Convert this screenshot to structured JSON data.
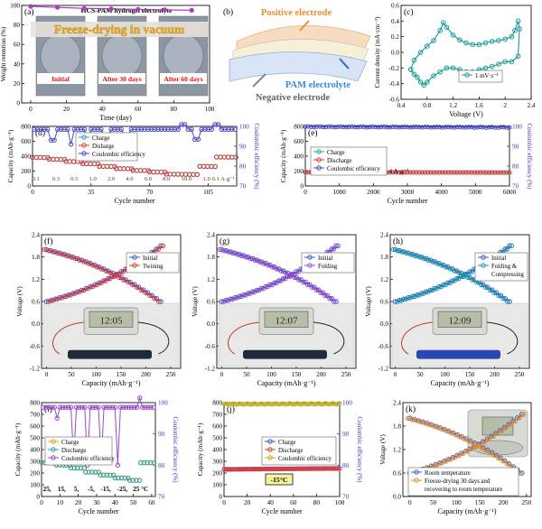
{
  "chart_data": [
    {
      "panel": "(a)",
      "type": "line",
      "title": "HCS-PAM hydrogel electrolyte",
      "xlabel": "Time (day)",
      "ylabel": "Weight retention (%)",
      "xlim": [
        -5,
        100
      ],
      "ylim": [
        0,
        100
      ],
      "xticks": [
        0,
        20,
        40,
        60,
        80,
        100
      ],
      "yticks": [
        0,
        20,
        40,
        60,
        80,
        100
      ],
      "banner": "Freeze-drying in vacuum",
      "photo_labels": [
        "Initial",
        "After 30 days",
        "After 60 days"
      ],
      "series": [
        {
          "color": "#b03cc0",
          "x": [
            0,
            15,
            30,
            45,
            60,
            75,
            90
          ],
          "y": [
            99,
            98,
            97,
            96.5,
            96,
            95.5,
            95
          ]
        }
      ]
    },
    {
      "panel": "(b)",
      "type": "diagram",
      "labels": {
        "top": "Positive electrode",
        "middle": "PAM electrolyte",
        "bottom": "Negative electrode"
      }
    },
    {
      "panel": "(c)",
      "type": "line",
      "xlabel": "Voltage (V)",
      "ylabel": "Current density (mA·cm⁻²)",
      "xlim": [
        0.4,
        2.4
      ],
      "ylim": [
        -0.6,
        0.6
      ],
      "xticks": [
        0.4,
        0.8,
        1.2,
        1.6,
        2.0,
        2.4
      ],
      "yticks": [
        -0.6,
        -0.4,
        -0.2,
        0.0,
        0.2,
        0.4,
        0.6
      ],
      "series": [
        {
          "name": "1 mV·s⁻¹",
          "color": "#1a9a96",
          "x": [
            0.55,
            0.6,
            0.7,
            0.8,
            0.9,
            1.0,
            1.05,
            1.1,
            1.2,
            1.3,
            1.4,
            1.5,
            1.6,
            1.7,
            1.8,
            1.9,
            2.0,
            2.1,
            2.15,
            2.2,
            2.22,
            2.2,
            2.1,
            2.0,
            1.9,
            1.8,
            1.7,
            1.6,
            1.5,
            1.4,
            1.3,
            1.2,
            1.1,
            1.0,
            0.9,
            0.8,
            0.75,
            0.7,
            0.65,
            0.6,
            0.55
          ],
          "y": [
            -0.22,
            -0.1,
            0.0,
            0.08,
            0.15,
            0.28,
            0.38,
            0.32,
            0.22,
            0.16,
            0.12,
            0.1,
            0.1,
            0.12,
            0.14,
            0.15,
            0.17,
            0.2,
            0.28,
            0.4,
            0.3,
            -0.05,
            -0.12,
            -0.12,
            -0.15,
            -0.18,
            -0.2,
            -0.22,
            -0.25,
            -0.25,
            -0.22,
            -0.2,
            -0.2,
            -0.25,
            -0.3,
            -0.38,
            -0.42,
            -0.38,
            -0.32,
            -0.28,
            -0.22
          ]
        }
      ]
    },
    {
      "panel": "(d)",
      "type": "line",
      "xlabel": "Cycle number",
      "ylabel": "Capacity (mAh·g⁻¹)",
      "y2label": "Coulombic efficiency (%)",
      "xlim": [
        0,
        122
      ],
      "ylim": [
        0,
        800
      ],
      "y2lim": [
        70,
        100
      ],
      "xticks": [
        0,
        35,
        70,
        105
      ],
      "yticks": [
        0,
        200,
        400,
        600,
        800
      ],
      "y2ticks": [
        70,
        80,
        90,
        100
      ],
      "rate_labels": [
        "0.1",
        "0.3",
        "0.5",
        "1.0",
        "2.0",
        "4.0",
        "6.0",
        "8.0",
        "10.0",
        "1.0",
        "0.1 A·g⁻¹"
      ],
      "legend": [
        "Charge",
        "Disharge",
        "Coulombic efficiency"
      ],
      "series": [
        {
          "name": "Charge",
          "color": "#2aa8a0",
          "axis": "y",
          "segments": [
            [
              0,
              10,
              385
            ],
            [
              10,
              20,
              360
            ],
            [
              20,
              30,
              330
            ],
            [
              30,
              40,
              300
            ],
            [
              40,
              50,
              265
            ],
            [
              50,
              60,
              235
            ],
            [
              60,
              70,
              210
            ],
            [
              70,
              80,
              190
            ],
            [
              80,
              100,
              160
            ],
            [
              100,
              110,
              265
            ],
            [
              110,
              122,
              390
            ]
          ]
        },
        {
          "name": "Disharge",
          "color": "#d83a3a",
          "axis": "y",
          "segments": [
            [
              0,
              10,
              383
            ],
            [
              10,
              20,
              358
            ],
            [
              20,
              30,
              328
            ],
            [
              30,
              40,
              298
            ],
            [
              40,
              50,
              263
            ],
            [
              50,
              60,
              233
            ],
            [
              60,
              70,
              208
            ],
            [
              70,
              80,
              188
            ],
            [
              80,
              100,
              158
            ],
            [
              100,
              110,
              263
            ],
            [
              110,
              122,
              388
            ]
          ]
        },
        {
          "name": "Coulombic efficiency",
          "color": "#4a4ac8",
          "axis": "y2",
          "base": 98.5,
          "dips": [
            [
              12,
              93
            ],
            [
              23,
              91
            ],
            [
              33,
              90
            ],
            [
              44,
              94.5
            ],
            [
              56,
              95.5
            ],
            [
              98,
              93.5
            ]
          ],
          "spikes": [
            [
              90,
              101
            ],
            [
              110,
              101
            ]
          ]
        }
      ]
    },
    {
      "panel": "(e)",
      "type": "line",
      "xlabel": "Cycle number",
      "ylabel": "Capacity (mAh·g⁻¹)",
      "y2label": "Coulombic efficiency (%)",
      "xlim": [
        0,
        6000
      ],
      "ylim": [
        0,
        800
      ],
      "y2lim": [
        70,
        100
      ],
      "xticks": [
        0,
        1000,
        2000,
        3000,
        4000,
        5000,
        6000
      ],
      "yticks": [
        0,
        200,
        400,
        600,
        800
      ],
      "y2ticks": [
        70,
        80,
        90,
        100
      ],
      "legend": [
        "Charge",
        "Discharge",
        "Coulombic efficiency"
      ],
      "annotation": "4 A·g⁻¹",
      "series": [
        {
          "name": "Charge",
          "color": "#2aa8a0",
          "axis": "y",
          "x": [
            0,
            6000
          ],
          "y": [
            185,
            180
          ]
        },
        {
          "name": "Discharge",
          "color": "#d83a3a",
          "axis": "y",
          "x": [
            0,
            6000
          ],
          "y": [
            184,
            179
          ]
        },
        {
          "name": "Coulombic efficiency",
          "color": "#4a4ac8",
          "axis": "y2",
          "x": [
            0,
            6000
          ],
          "y": [
            99.8,
            99.5
          ]
        }
      ]
    },
    {
      "panel": "(f)",
      "type": "line",
      "xlabel": "Capacity (mAh·g⁻¹)",
      "ylabel": "Voltage (V)",
      "xlim": [
        -10,
        270
      ],
      "ylim": [
        -1.2,
        2.4
      ],
      "xticks": [
        0,
        50,
        100,
        150,
        200,
        250
      ],
      "yticks": [
        -1.2,
        -0.6,
        0.0,
        0.6,
        1.2,
        1.8,
        2.4
      ],
      "legend": [
        "Initial",
        "Twining"
      ],
      "colors": [
        "#3a5ad0",
        "#d83a3a"
      ],
      "charge_x": [
        0,
        230
      ],
      "charge_y": [
        0.6,
        2.1
      ],
      "discharge_y": [
        2.0,
        0.6
      ],
      "display_text": "12:05"
    },
    {
      "panel": "(g)",
      "type": "line",
      "xlabel": "Capacity (mAh·g⁻¹)",
      "ylabel": "Voltage (V)",
      "xlim": [
        -10,
        270
      ],
      "ylim": [
        -1.2,
        2.4
      ],
      "xticks": [
        0,
        50,
        100,
        150,
        200,
        250
      ],
      "yticks": [
        -1.2,
        -0.6,
        0.0,
        0.6,
        1.2,
        1.8,
        2.4
      ],
      "legend": [
        "Initial",
        "Folding"
      ],
      "colors": [
        "#3a5ad0",
        "#9a4ac8"
      ],
      "charge_x": [
        0,
        230
      ],
      "charge_y": [
        0.6,
        2.1
      ],
      "discharge_y": [
        2.0,
        0.6
      ],
      "display_text": "12:07"
    },
    {
      "panel": "(h)",
      "type": "line",
      "xlabel": "Capacity (mAh·g⁻¹)",
      "ylabel": "Voltage (V)",
      "xlim": [
        -10,
        270
      ],
      "ylim": [
        -1.2,
        2.4
      ],
      "xticks": [
        0,
        50,
        100,
        150,
        200,
        250
      ],
      "yticks": [
        -1.2,
        -0.6,
        0.0,
        0.6,
        1.2,
        1.8,
        2.4
      ],
      "legend": [
        "Initial",
        "Folding &",
        "Compressing"
      ],
      "colors": [
        "#3a5ad0",
        "#1a9aa6"
      ],
      "charge_x": [
        0,
        230
      ],
      "charge_y": [
        0.6,
        2.1
      ],
      "discharge_y": [
        2.0,
        0.6
      ],
      "display_text": "12:09"
    },
    {
      "panel": "(i)",
      "type": "line",
      "xlabel": "Cycle number",
      "ylabel": "Capacity (mAh·g⁻¹)",
      "y2label": "Coulombic efficiency (%)",
      "xlim": [
        0,
        62
      ],
      "ylim": [
        0,
        800
      ],
      "y2lim": [
        70,
        100
      ],
      "xticks": [
        0,
        10,
        20,
        30,
        40,
        50,
        60
      ],
      "yticks": [
        0,
        100,
        200,
        300,
        400,
        500,
        600,
        700,
        800
      ],
      "y2ticks": [
        70,
        80,
        90,
        100
      ],
      "temp_labels": [
        "25,",
        "15,",
        "5,",
        "-5,",
        "-15,",
        "-25,",
        "25 °C"
      ],
      "legend": [
        "Charge",
        "Discharge",
        "Coulombic efficiency"
      ],
      "series": [
        {
          "name": "Charge",
          "color": "#e8a020",
          "axis": "y",
          "segments": [
            [
              0,
              8,
              290
            ],
            [
              8,
              16,
              270
            ],
            [
              16,
              24,
              245
            ],
            [
              24,
              32,
              210
            ],
            [
              32,
              40,
              185
            ],
            [
              40,
              48,
              160
            ],
            [
              48,
              54,
              140
            ],
            [
              54,
              62,
              290
            ]
          ]
        },
        {
          "name": "Discharge",
          "color": "#2aa8a0",
          "axis": "y",
          "segments": [
            [
              0,
              8,
              288
            ],
            [
              8,
              16,
              268
            ],
            [
              16,
              24,
              243
            ],
            [
              24,
              32,
              208
            ],
            [
              32,
              40,
              183
            ],
            [
              40,
              48,
              158
            ],
            [
              48,
              54,
              138
            ],
            [
              54,
              62,
              288
            ]
          ]
        },
        {
          "name": "Coulombic efficiency",
          "color": "#9a4ac8",
          "axis": "y2",
          "base": 98.5,
          "dips": [
            [
              9,
              95
            ],
            [
              17,
              82
            ],
            [
              25,
              80
            ],
            [
              33,
              81
            ],
            [
              41,
              80
            ]
          ],
          "spikes": [
            [
              54,
              101.5
            ]
          ]
        }
      ]
    },
    {
      "panel": "(j)",
      "type": "line",
      "xlabel": "Cycle number",
      "ylabel": "Capacity (mAh·g⁻¹)",
      "y2label": "Coulombic efficiency (%)",
      "xlim": [
        0,
        100
      ],
      "ylim": [
        0,
        800
      ],
      "y2lim": [
        70,
        100
      ],
      "xticks": [
        0,
        20,
        40,
        60,
        80,
        100
      ],
      "yticks": [
        0,
        100,
        200,
        300,
        400,
        500,
        600,
        700,
        800
      ],
      "y2ticks": [
        70,
        80,
        90,
        100
      ],
      "legend": [
        "Charge",
        "Discharge",
        "Coulombic efficiency"
      ],
      "annotation": "-15°C",
      "series": [
        {
          "name": "Charge",
          "color": "#3a5ad0",
          "axis": "y",
          "x": [
            0,
            100
          ],
          "y": [
            232,
            240
          ]
        },
        {
          "name": "Discharge",
          "color": "#d83a3a",
          "axis": "y",
          "x": [
            0,
            100
          ],
          "y": [
            230,
            238
          ]
        },
        {
          "name": "Coulombic efficiency",
          "color": "#b8b020",
          "axis": "y2",
          "x": [
            0,
            100
          ],
          "y": [
            99.5,
            99.6
          ]
        }
      ]
    },
    {
      "panel": "(k)",
      "type": "line",
      "xlabel": "Capacity (mAh·g⁻¹)",
      "ylabel": "Voltage (V)",
      "xlim": [
        -15,
        260
      ],
      "ylim": [
        0.0,
        2.4
      ],
      "xticks": [
        0,
        50,
        100,
        150,
        200,
        250
      ],
      "yticks": [
        0.0,
        0.6,
        1.2,
        1.8,
        2.4
      ],
      "legend": [
        "Room temperature",
        "Freeze-drying 30 days and",
        "recovering to room temperature"
      ],
      "colors": [
        "#3a5ad0",
        "#e8902a"
      ],
      "charge_x": [
        0,
        240
      ],
      "charge_y": [
        0.6,
        2.1
      ],
      "discharge_y": [
        2.0,
        0.6
      ]
    }
  ]
}
